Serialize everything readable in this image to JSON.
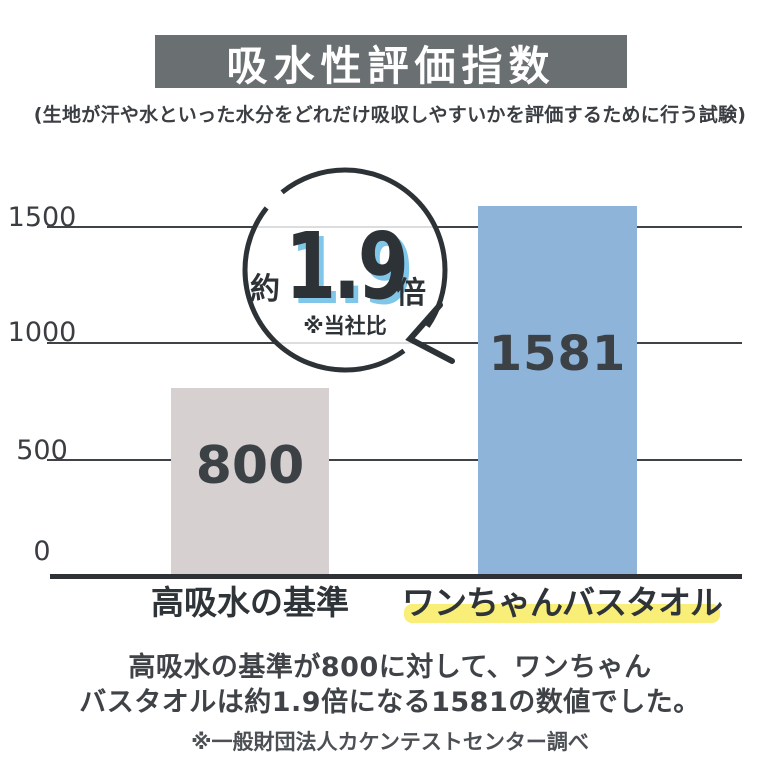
{
  "header": {
    "title": "吸水性評価指数",
    "subtitle": "(生地が汗や水といった水分をどれだけ吸収しやすいかを評価するために行う試験)"
  },
  "chart_data": {
    "type": "bar",
    "title": "吸水性評価指数",
    "categories": [
      "高吸水の基準",
      "ワンちゃんバスタオル"
    ],
    "values": [
      800,
      1581
    ],
    "bar_labels": [
      "800",
      "1581"
    ],
    "bar_colors": [
      "#d6d0d1",
      "#8fb4da"
    ],
    "yticks": [
      1500,
      1000,
      500,
      0
    ],
    "ylim": [
      0,
      1600
    ],
    "grid": true,
    "legend": "none",
    "highlighted_category": "ワンちゃんバスタオル"
  },
  "callout": {
    "prefix": "約",
    "value": "1.9",
    "suffix": "倍",
    "note": "※当社比"
  },
  "footer": {
    "description_line1": "高吸水の基準が800に対して、ワンちゃん",
    "description_line2": "バスタオルは約1.9倍になる1581の数値でした。",
    "source": "※一般財団法人カケンテストセンター調べ"
  },
  "colors": {
    "banner_bg": "#6a6f72",
    "banner_text": "#ffffff",
    "bar_standard": "#d6d0d1",
    "bar_product": "#8fb4da",
    "grid_line": "#3f4347",
    "axis_line": "#2e3236",
    "text_dark": "#33383c",
    "highlight_yellow": "#f8ee78",
    "callout_value_shadow": "#7fc6e8"
  }
}
